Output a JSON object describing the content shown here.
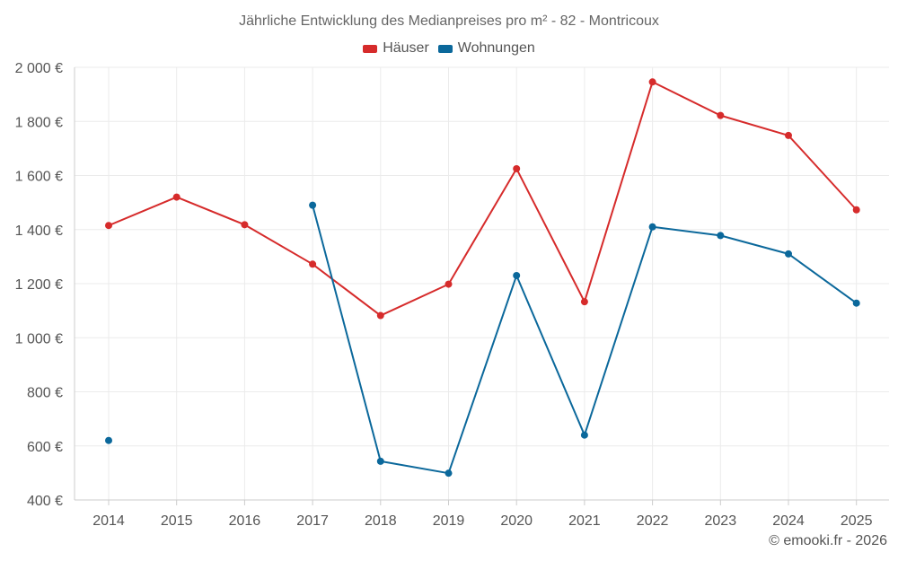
{
  "chart_data": {
    "type": "line",
    "title": "Jährliche Entwicklung des Medianpreises pro m² - 82 - Montricoux",
    "categories": [
      "2014",
      "2015",
      "2016",
      "2017",
      "2018",
      "2019",
      "2020",
      "2021",
      "2022",
      "2023",
      "2024",
      "2025"
    ],
    "series": [
      {
        "name": "Häuser",
        "color": "#d62b2b",
        "values": [
          1415,
          1520,
          1418,
          1272,
          1082,
          1198,
          1625,
          1133,
          1946,
          1822,
          1748,
          1473
        ]
      },
      {
        "name": "Wohnungen",
        "color": "#0b689b",
        "values": [
          620,
          null,
          null,
          1490,
          543,
          499,
          1230,
          640,
          1410,
          1378,
          1310,
          1128
        ]
      }
    ],
    "ylim": [
      400,
      2000
    ],
    "yticks": [
      400,
      600,
      800,
      1000,
      1200,
      1400,
      1600,
      1800,
      2000
    ],
    "ytick_labels": [
      "400 €",
      "600 €",
      "800 €",
      "1 000 €",
      "1 200 €",
      "1 400 €",
      "1 600 €",
      "1 800 €",
      "2 000 €"
    ],
    "grid": true,
    "legend_position": "top-center"
  },
  "credit": "© emooki.fr - 2026"
}
